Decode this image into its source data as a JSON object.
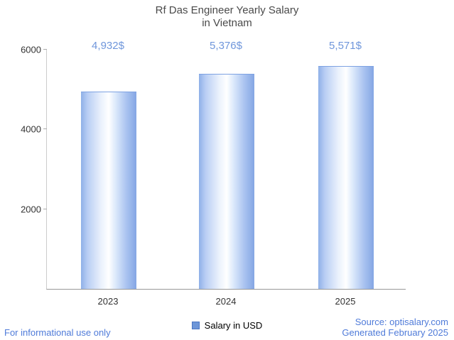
{
  "title": {
    "line1": "Rf Das Engineer Yearly Salary",
    "line2": "in Vietnam"
  },
  "chart_data": {
    "type": "bar",
    "title": "Rf Das Engineer Yearly Salary in Vietnam",
    "categories": [
      "2023",
      "2024",
      "2025"
    ],
    "values": [
      4932,
      5376,
      5571
    ],
    "value_labels": [
      "4,932$",
      "5,376$",
      "5,571$"
    ],
    "series": [
      {
        "name": "Salary in USD",
        "values": [
          4932,
          5376,
          5571
        ]
      }
    ],
    "ylim": [
      0,
      6000
    ],
    "yticks": [
      2000,
      4000,
      6000
    ],
    "ytick_labels": [
      "2000",
      "4000",
      "6000"
    ],
    "xlabel": "",
    "ylabel": "",
    "grid": false,
    "legend_position": "bottom"
  },
  "legend": {
    "label": "Salary in USD",
    "swatch_color": "#6d96d8"
  },
  "footer": {
    "left": "For informational use only",
    "source": "Source: optisalary.com",
    "generated": "Generated February 2025"
  },
  "colors": {
    "value_label": "#6f96db",
    "footer_text": "#4f7bd9",
    "bar_fill_light": "#ffffff",
    "bar_fill_dark": "#84a6e4",
    "title_text": "#4a4a4a",
    "axis": "#999999"
  }
}
